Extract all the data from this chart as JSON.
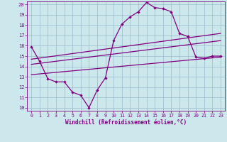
{
  "xlabel": "Windchill (Refroidissement éolien,°C)",
  "bg_color": "#cce8ec",
  "line_color": "#800080",
  "grid_color": "#99bbcc",
  "xlim": [
    -0.5,
    23.5
  ],
  "ylim": [
    9.7,
    20.3
  ],
  "xticks": [
    0,
    1,
    2,
    3,
    4,
    5,
    6,
    7,
    8,
    9,
    10,
    11,
    12,
    13,
    14,
    15,
    16,
    17,
    18,
    19,
    20,
    21,
    22,
    23
  ],
  "yticks": [
    10,
    11,
    12,
    13,
    14,
    15,
    16,
    17,
    18,
    19,
    20
  ],
  "line1_x": [
    0,
    1,
    2,
    3,
    4,
    5,
    6,
    7,
    8,
    9,
    10,
    11,
    12,
    13,
    14,
    15,
    16,
    17,
    18,
    19,
    20,
    21,
    22,
    23
  ],
  "line1_y": [
    15.9,
    14.5,
    12.8,
    12.5,
    12.5,
    11.5,
    11.2,
    10.0,
    11.7,
    12.9,
    16.5,
    18.1,
    18.8,
    19.3,
    20.2,
    19.7,
    19.6,
    19.3,
    17.2,
    16.9,
    14.9,
    14.8,
    15.0,
    15.0
  ],
  "line2_x": [
    0,
    23
  ],
  "line2_y": [
    14.7,
    17.2
  ],
  "line3_x": [
    0,
    23
  ],
  "line3_y": [
    14.2,
    16.5
  ],
  "line4_x": [
    0,
    23
  ],
  "line4_y": [
    13.2,
    14.9
  ]
}
